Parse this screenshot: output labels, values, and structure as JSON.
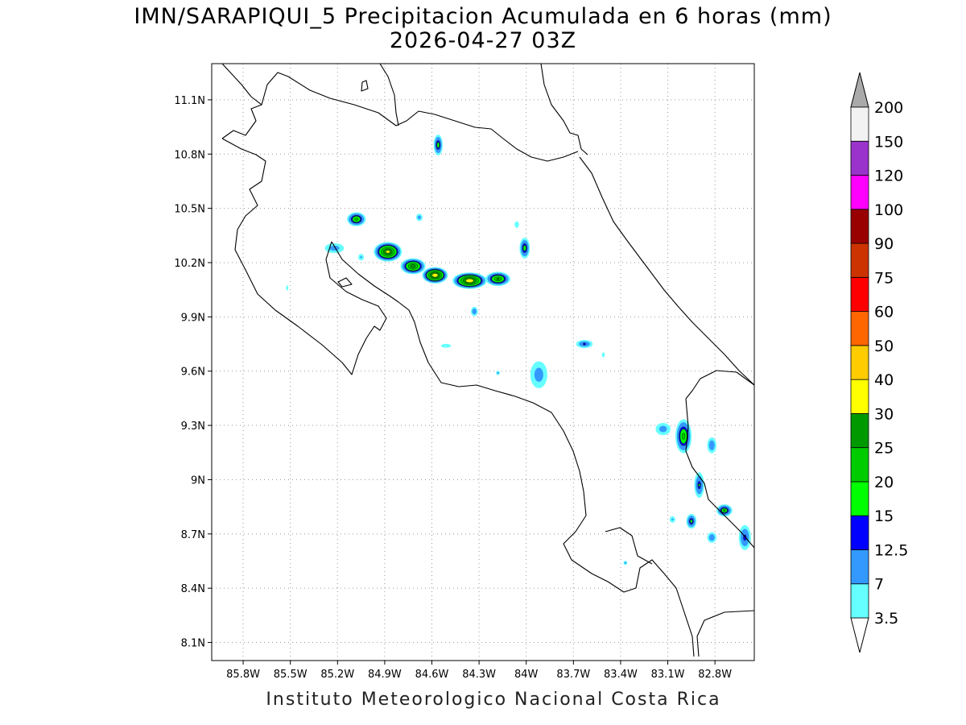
{
  "title_line1": "IMN/SARAPIQUI_5 Precipitacion Acumulada en 6 horas (mm)",
  "title_line2": "2026-04-27 03Z",
  "credit": "Instituto Meteorologico Nacional Costa Rica",
  "map": {
    "lon_range": [
      -86.0,
      -82.55
    ],
    "lat_range": [
      8.0,
      11.3
    ],
    "lon_ticks": [
      {
        "value": -85.8,
        "label": "85.8W"
      },
      {
        "value": -85.5,
        "label": "85.5W"
      },
      {
        "value": -85.2,
        "label": "85.2W"
      },
      {
        "value": -84.9,
        "label": "84.9W"
      },
      {
        "value": -84.6,
        "label": "84.6W"
      },
      {
        "value": -84.3,
        "label": "84.3W"
      },
      {
        "value": -84.0,
        "label": "84W"
      },
      {
        "value": -83.7,
        "label": "83.7W"
      },
      {
        "value": -83.4,
        "label": "83.4W"
      },
      {
        "value": -83.1,
        "label": "83.1W"
      },
      {
        "value": -82.8,
        "label": "82.8W"
      }
    ],
    "lat_ticks": [
      {
        "value": 11.1,
        "label": "11.1N"
      },
      {
        "value": 10.8,
        "label": "10.8N"
      },
      {
        "value": 10.5,
        "label": "10.5N"
      },
      {
        "value": 10.2,
        "label": "10.2N"
      },
      {
        "value": 9.9,
        "label": "9.9N"
      },
      {
        "value": 9.6,
        "label": "9.6N"
      },
      {
        "value": 9.3,
        "label": "9.3N"
      },
      {
        "value": 9.0,
        "label": "9N"
      },
      {
        "value": 8.7,
        "label": "8.7N"
      },
      {
        "value": 8.4,
        "label": "8.4N"
      },
      {
        "value": 8.1,
        "label": "8.1N"
      }
    ],
    "grid": "dotted"
  },
  "colorbar": {
    "orientation": "vertical",
    "extend": "both",
    "levels": [
      {
        "label": "3.5",
        "color": "#66ffff"
      },
      {
        "label": "7",
        "color": "#3399ff"
      },
      {
        "label": "12.5",
        "color": "#0000ff"
      },
      {
        "label": "15",
        "color": "#00ff00"
      },
      {
        "label": "20",
        "color": "#00cc00"
      },
      {
        "label": "25",
        "color": "#009900"
      },
      {
        "label": "30",
        "color": "#ffff00"
      },
      {
        "label": "40",
        "color": "#ffcc00"
      },
      {
        "label": "50",
        "color": "#ff6600"
      },
      {
        "label": "60",
        "color": "#ff0000"
      },
      {
        "label": "75",
        "color": "#cc3300"
      },
      {
        "label": "90",
        "color": "#990000"
      },
      {
        "label": "100",
        "color": "#ff00ff"
      },
      {
        "label": "120",
        "color": "#9933cc"
      },
      {
        "label": "150",
        "color": "#f2f2f2"
      },
      {
        "label": "200",
        "color": "#aaaaaa"
      }
    ]
  },
  "precip_cells": [
    {
      "lon": -85.08,
      "lat": 10.44,
      "rx": 0.07,
      "ry": 0.045,
      "max_mm": 22
    },
    {
      "lon": -84.88,
      "lat": 10.26,
      "rx": 0.1,
      "ry": 0.06,
      "max_mm": 32
    },
    {
      "lon": -84.72,
      "lat": 10.18,
      "rx": 0.09,
      "ry": 0.05,
      "max_mm": 28
    },
    {
      "lon": -84.58,
      "lat": 10.13,
      "rx": 0.09,
      "ry": 0.05,
      "max_mm": 35
    },
    {
      "lon": -84.36,
      "lat": 10.1,
      "rx": 0.12,
      "ry": 0.05,
      "max_mm": 35
    },
    {
      "lon": -84.18,
      "lat": 10.11,
      "rx": 0.09,
      "ry": 0.045,
      "max_mm": 25
    },
    {
      "lon": -84.01,
      "lat": 10.28,
      "rx": 0.04,
      "ry": 0.07,
      "max_mm": 18
    },
    {
      "lon": -84.56,
      "lat": 10.85,
      "rx": 0.035,
      "ry": 0.07,
      "max_mm": 18
    },
    {
      "lon": -85.22,
      "lat": 10.28,
      "rx": 0.09,
      "ry": 0.04,
      "max_mm": 10
    },
    {
      "lon": -84.33,
      "lat": 9.93,
      "rx": 0.03,
      "ry": 0.035,
      "max_mm": 12
    },
    {
      "lon": -83.92,
      "lat": 9.58,
      "rx": 0.08,
      "ry": 0.11,
      "max_mm": 10
    },
    {
      "lon": -83.0,
      "lat": 9.24,
      "rx": 0.06,
      "ry": 0.11,
      "max_mm": 22
    },
    {
      "lon": -82.9,
      "lat": 8.97,
      "rx": 0.04,
      "ry": 0.09,
      "max_mm": 15
    },
    {
      "lon": -82.82,
      "lat": 9.19,
      "rx": 0.04,
      "ry": 0.06,
      "max_mm": 12
    },
    {
      "lon": -82.74,
      "lat": 8.83,
      "rx": 0.06,
      "ry": 0.04,
      "max_mm": 20
    },
    {
      "lon": -82.95,
      "lat": 8.77,
      "rx": 0.04,
      "ry": 0.05,
      "max_mm": 17
    },
    {
      "lon": -82.82,
      "lat": 8.68,
      "rx": 0.04,
      "ry": 0.04,
      "max_mm": 12
    },
    {
      "lon": -82.61,
      "lat": 8.68,
      "rx": 0.05,
      "ry": 0.09,
      "max_mm": 14
    },
    {
      "lon": -83.13,
      "lat": 9.28,
      "rx": 0.07,
      "ry": 0.05,
      "max_mm": 10
    },
    {
      "lon": -83.63,
      "lat": 9.75,
      "rx": 0.07,
      "ry": 0.03,
      "max_mm": 13
    },
    {
      "lon": -84.06,
      "lat": 10.41,
      "rx": 0.04,
      "ry": 0.05,
      "max_mm": 5
    },
    {
      "lon": -84.51,
      "lat": 9.74,
      "rx": 0.09,
      "ry": 0.03,
      "max_mm": 5
    },
    {
      "lon": -84.68,
      "lat": 10.45,
      "rx": 0.03,
      "ry": 0.03,
      "max_mm": 10
    },
    {
      "lon": -85.05,
      "lat": 10.23,
      "rx": 0.03,
      "ry": 0.03,
      "max_mm": 8
    },
    {
      "lon": -85.52,
      "lat": 10.06,
      "rx": 0.02,
      "ry": 0.04,
      "max_mm": 5
    },
    {
      "lon": -83.37,
      "lat": 8.54,
      "rx": 0.02,
      "ry": 0.02,
      "max_mm": 8
    },
    {
      "lon": -84.18,
      "lat": 9.59,
      "rx": 0.02,
      "ry": 0.02,
      "max_mm": 8
    },
    {
      "lon": -83.51,
      "lat": 9.69,
      "rx": 0.02,
      "ry": 0.03,
      "max_mm": 6
    },
    {
      "lon": -83.07,
      "lat": 8.78,
      "rx": 0.03,
      "ry": 0.03,
      "max_mm": 8
    }
  ]
}
